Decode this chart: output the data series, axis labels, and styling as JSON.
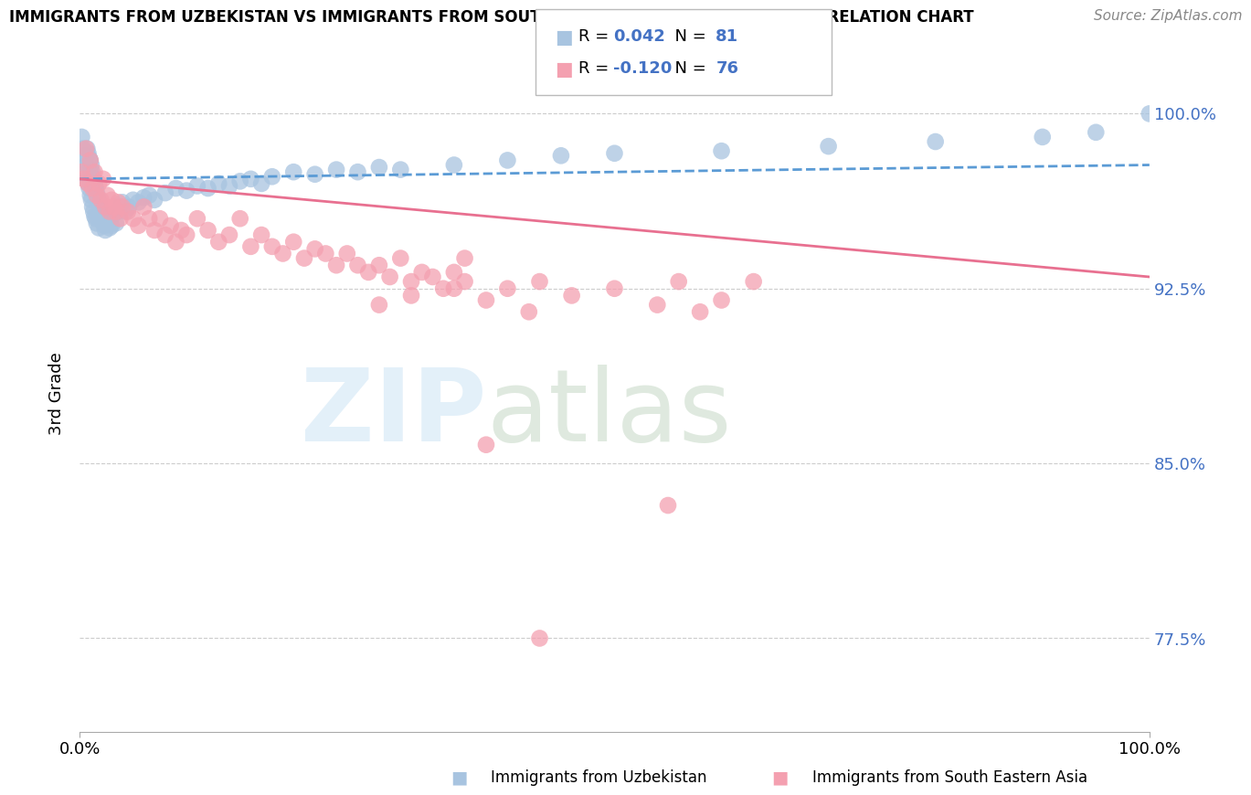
{
  "title": "IMMIGRANTS FROM UZBEKISTAN VS IMMIGRANTS FROM SOUTH EASTERN ASIA 3RD GRADE CORRELATION CHART",
  "source": "Source: ZipAtlas.com",
  "ylabel": "3rd Grade",
  "ytick_vals": [
    0.775,
    0.85,
    0.925,
    1.0
  ],
  "ytick_labels": [
    "77.5%",
    "85.0%",
    "92.5%",
    "100.0%"
  ],
  "xlim": [
    0.0,
    1.0
  ],
  "ylim": [
    0.735,
    1.025
  ],
  "color_blue": "#a8c4e0",
  "color_pink": "#f4a0b0",
  "color_blue_line": "#5b9bd5",
  "color_pink_line": "#e87090",
  "blue_r": "0.042",
  "blue_n": "81",
  "pink_r": "-0.120",
  "pink_n": "76",
  "blue_scatter_x": [
    0.002,
    0.003,
    0.004,
    0.005,
    0.005,
    0.006,
    0.007,
    0.007,
    0.008,
    0.008,
    0.009,
    0.009,
    0.01,
    0.01,
    0.01,
    0.011,
    0.011,
    0.012,
    0.012,
    0.013,
    0.013,
    0.014,
    0.014,
    0.015,
    0.015,
    0.016,
    0.016,
    0.017,
    0.018,
    0.018,
    0.019,
    0.02,
    0.021,
    0.022,
    0.023,
    0.024,
    0.025,
    0.026,
    0.027,
    0.028,
    0.029,
    0.03,
    0.032,
    0.034,
    0.036,
    0.038,
    0.04,
    0.043,
    0.046,
    0.05,
    0.055,
    0.06,
    0.065,
    0.07,
    0.08,
    0.09,
    0.1,
    0.11,
    0.12,
    0.13,
    0.14,
    0.15,
    0.16,
    0.17,
    0.18,
    0.2,
    0.22,
    0.24,
    0.26,
    0.28,
    0.3,
    0.35,
    0.4,
    0.45,
    0.5,
    0.6,
    0.7,
    0.8,
    0.9,
    1.0,
    0.95
  ],
  "blue_scatter_y": [
    0.99,
    0.985,
    0.98,
    0.982,
    0.975,
    0.978,
    0.985,
    0.972,
    0.983,
    0.97,
    0.981,
    0.968,
    0.98,
    0.975,
    0.965,
    0.978,
    0.963,
    0.975,
    0.96,
    0.972,
    0.958,
    0.97,
    0.956,
    0.968,
    0.955,
    0.966,
    0.953,
    0.964,
    0.962,
    0.951,
    0.96,
    0.958,
    0.956,
    0.954,
    0.952,
    0.95,
    0.955,
    0.953,
    0.957,
    0.951,
    0.955,
    0.952,
    0.957,
    0.953,
    0.958,
    0.96,
    0.962,
    0.958,
    0.96,
    0.963,
    0.962,
    0.964,
    0.965,
    0.963,
    0.966,
    0.968,
    0.967,
    0.969,
    0.968,
    0.97,
    0.969,
    0.971,
    0.972,
    0.97,
    0.973,
    0.975,
    0.974,
    0.976,
    0.975,
    0.977,
    0.976,
    0.978,
    0.98,
    0.982,
    0.983,
    0.984,
    0.986,
    0.988,
    0.99,
    1.0,
    0.992
  ],
  "pink_scatter_x": [
    0.002,
    0.004,
    0.006,
    0.008,
    0.01,
    0.012,
    0.014,
    0.016,
    0.018,
    0.02,
    0.022,
    0.024,
    0.026,
    0.028,
    0.03,
    0.032,
    0.034,
    0.036,
    0.038,
    0.04,
    0.045,
    0.05,
    0.055,
    0.06,
    0.065,
    0.07,
    0.075,
    0.08,
    0.085,
    0.09,
    0.095,
    0.1,
    0.11,
    0.12,
    0.13,
    0.14,
    0.15,
    0.16,
    0.17,
    0.18,
    0.19,
    0.2,
    0.21,
    0.22,
    0.23,
    0.24,
    0.25,
    0.26,
    0.27,
    0.28,
    0.29,
    0.3,
    0.31,
    0.32,
    0.33,
    0.34,
    0.35,
    0.36,
    0.38,
    0.4,
    0.43,
    0.46,
    0.5,
    0.54,
    0.56,
    0.58,
    0.6,
    0.63,
    0.38,
    0.42,
    0.35,
    0.28,
    0.36,
    0.31,
    0.55,
    0.43
  ],
  "pink_scatter_y": [
    0.975,
    0.972,
    0.985,
    0.97,
    0.98,
    0.968,
    0.975,
    0.965,
    0.97,
    0.963,
    0.972,
    0.96,
    0.965,
    0.958,
    0.963,
    0.96,
    0.958,
    0.962,
    0.955,
    0.96,
    0.958,
    0.955,
    0.952,
    0.96,
    0.955,
    0.95,
    0.955,
    0.948,
    0.952,
    0.945,
    0.95,
    0.948,
    0.955,
    0.95,
    0.945,
    0.948,
    0.955,
    0.943,
    0.948,
    0.943,
    0.94,
    0.945,
    0.938,
    0.942,
    0.94,
    0.935,
    0.94,
    0.935,
    0.932,
    0.935,
    0.93,
    0.938,
    0.928,
    0.932,
    0.93,
    0.925,
    0.932,
    0.928,
    0.92,
    0.925,
    0.928,
    0.922,
    0.925,
    0.918,
    0.928,
    0.915,
    0.92,
    0.928,
    0.858,
    0.915,
    0.925,
    0.918,
    0.938,
    0.922,
    0.832,
    0.775
  ]
}
